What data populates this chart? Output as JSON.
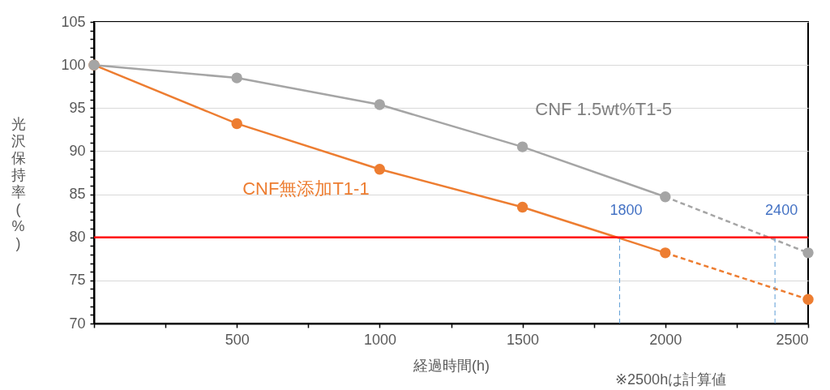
{
  "chart_data": {
    "type": "line",
    "xlabel": "経過時間(h)",
    "ylabel": "光沢保持率(%)",
    "xlim": [
      0,
      2500
    ],
    "ylim": [
      70,
      105
    ],
    "xticks": [
      {
        "value": 0,
        "label": null
      },
      {
        "value": 250,
        "label": null
      },
      500,
      {
        "value": 750,
        "label": null
      },
      1000,
      {
        "value": 1250,
        "label": null
      },
      1500,
      {
        "value": 1750,
        "label": null
      },
      2000,
      {
        "value": 2250,
        "label": null
      },
      2500
    ],
    "yticks": [
      70,
      {
        "value": 71,
        "label": null
      },
      {
        "value": 72,
        "label": null
      },
      {
        "value": 73,
        "label": null
      },
      {
        "value": 74,
        "label": null
      },
      75,
      {
        "value": 76,
        "label": null
      },
      {
        "value": 77,
        "label": null
      },
      {
        "value": 78,
        "label": null
      },
      {
        "value": 79,
        "label": null
      },
      80,
      {
        "value": 81,
        "label": null
      },
      {
        "value": 82,
        "label": null
      },
      {
        "value": 83,
        "label": null
      },
      {
        "value": 84,
        "label": null
      },
      85,
      {
        "value": 86,
        "label": null
      },
      {
        "value": 87,
        "label": null
      },
      {
        "value": 88,
        "label": null
      },
      {
        "value": 89,
        "label": null
      },
      90,
      {
        "value": 91,
        "label": null
      },
      {
        "value": 92,
        "label": null
      },
      {
        "value": 93,
        "label": null
      },
      {
        "value": 94,
        "label": null
      },
      95,
      {
        "value": 96,
        "label": null
      },
      {
        "value": 97,
        "label": null
      },
      {
        "value": 98,
        "label": null
      },
      {
        "value": 99,
        "label": null
      },
      100,
      {
        "value": 101,
        "label": null
      },
      {
        "value": 102,
        "label": null
      },
      {
        "value": 103,
        "label": null
      },
      {
        "value": 104,
        "label": null
      },
      105
    ],
    "grid": "y",
    "series": [
      {
        "name": "CNF無添加T1-1",
        "color": "#ed7d31",
        "x": [
          0,
          500,
          1000,
          1500,
          2000
        ],
        "values": [
          100,
          93.2,
          87.9,
          83.5,
          78.2
        ],
        "marker": "circle",
        "line_style": "solid"
      },
      {
        "name": "CNF 1.5wt%T1-5",
        "color": "#a5a5a5",
        "x": [
          0,
          500,
          1000,
          1500,
          2000
        ],
        "values": [
          100,
          98.5,
          95.4,
          90.5,
          84.7
        ],
        "marker": "circle",
        "line_style": "solid"
      },
      {
        "color": "#ed7d31",
        "x": [
          2000,
          2500
        ],
        "values": [
          78.2,
          72.8
        ],
        "marker": "none",
        "line_style": "dashed"
      },
      {
        "color": "#a5a5a5",
        "x": [
          2000,
          2500
        ],
        "values": [
          84.7,
          78.2
        ],
        "marker": "none",
        "line_style": "dashed"
      },
      {
        "type": "scatter",
        "color": "#ed7d31",
        "x": [
          2500
        ],
        "values": [
          72.8
        ],
        "marker": "circle"
      },
      {
        "type": "scatter",
        "color": "#a5a5a5",
        "x": [
          2500
        ],
        "values": [
          78.2
        ],
        "marker": "circle"
      },
      {
        "color": "#5b9bd5",
        "x": [
          1840,
          1840
        ],
        "values": [
          70,
          80
        ],
        "marker": "none",
        "line_style": "dashed"
      },
      {
        "color": "#5b9bd5",
        "x": [
          2384,
          2384
        ],
        "values": [
          70,
          80
        ],
        "marker": "none",
        "line_style": "dashed"
      }
    ],
    "ref_lines": [
      {
        "axis": "y",
        "value": 80,
        "color": "#ff0000",
        "line_style": "solid"
      }
    ],
    "annotations": [
      {
        "text": "1800",
        "x": 1840,
        "y": 80
      },
      {
        "text": "2400",
        "x": 2384,
        "y": 80
      },
      "※2500hは計算値"
    ]
  }
}
